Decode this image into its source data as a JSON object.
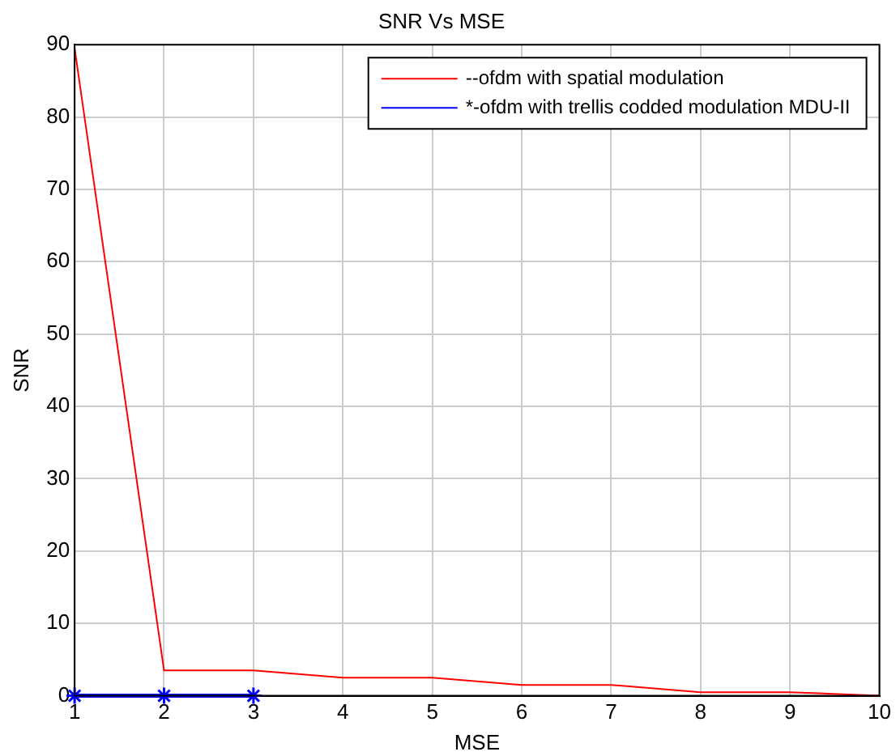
{
  "chart_data": {
    "type": "line",
    "title": "SNR Vs MSE",
    "xlabel": "MSE",
    "ylabel": "SNR",
    "x": [
      1,
      2,
      3,
      4,
      5,
      6,
      7,
      8,
      9,
      10
    ],
    "series": [
      {
        "name": "--ofdm with spatial modulation",
        "color": "#ff0000",
        "marker": "none",
        "values": [
          89.5,
          3.5,
          3.5,
          2.5,
          2.5,
          1.5,
          1.5,
          0.5,
          0.5,
          0
        ]
      },
      {
        "name": "*-ofdm with trellis codded modulation MDU-II",
        "color": "#0000ff",
        "marker": "cross",
        "x": [
          1,
          2,
          3
        ],
        "values": [
          0,
          0,
          0
        ]
      }
    ],
    "xlim": [
      1,
      10
    ],
    "xticks": [
      1,
      2,
      3,
      4,
      5,
      6,
      7,
      8,
      9,
      10
    ],
    "ylim": [
      0,
      90
    ],
    "yticks": [
      0,
      10,
      20,
      30,
      40,
      50,
      60,
      70,
      80,
      90
    ],
    "grid": true,
    "legend": "top right",
    "line_style": "solid"
  }
}
